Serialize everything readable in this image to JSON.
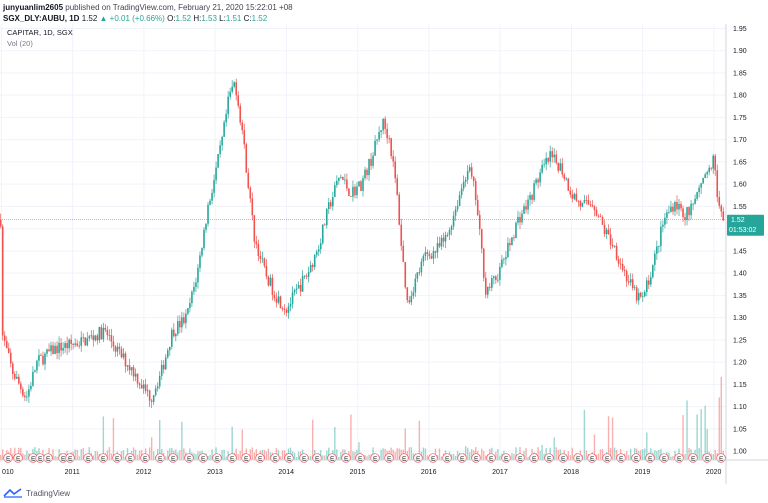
{
  "header": {
    "user": "junyuanlim2605",
    "published": "published on TradingView.com, February 21, 2020 15:22:01 +08",
    "symbol": "SGX_DLY:AUBU, 1D",
    "last": "1.52",
    "change": "+0.01 (+0.66%)",
    "o_label": "O:",
    "o": "1.52",
    "h_label": "H:",
    "h": "1.53",
    "l_label": "L:",
    "l": "1.51",
    "c_label": "C:",
    "c": "1.52"
  },
  "legend": {
    "title": "CAPITAR, 1D, SGX",
    "volume": "Vol (20)"
  },
  "price_badge": {
    "price": "1.52",
    "countdown": "01:53:02"
  },
  "footer": {
    "brand": "TradingView"
  },
  "colors": {
    "up": "#26a69a",
    "down": "#ef5350",
    "grid": "#f0f3fa",
    "axis_text": "#131722",
    "badge": "#26a69a"
  },
  "event_marker_label": "E",
  "chart_data": {
    "type": "candlestick",
    "interval": "1D",
    "x_ticks": [
      "010",
      "2011",
      "2012",
      "2013",
      "2014",
      "2015",
      "2016",
      "2017",
      "2018",
      "2019",
      "2020"
    ],
    "y_ticks": [
      "1.95",
      "1.90",
      "1.85",
      "1.80",
      "1.75",
      "1.70",
      "1.65",
      "1.60",
      "1.55",
      "1.50",
      "1.45",
      "1.40",
      "1.35",
      "1.30",
      "1.25",
      "1.20",
      "1.15",
      "1.10",
      "1.05",
      "1.00"
    ],
    "ylim": [
      0.98,
      1.96
    ],
    "last_price": 1.52,
    "series": [
      {
        "name": "Price (approx. trend)",
        "points": [
          [
            2010.0,
            1.27
          ],
          [
            2010.15,
            1.18
          ],
          [
            2010.35,
            1.12
          ],
          [
            2010.5,
            1.2
          ],
          [
            2010.75,
            1.23
          ],
          [
            2011.0,
            1.24
          ],
          [
            2011.2,
            1.25
          ],
          [
            2011.45,
            1.27
          ],
          [
            2011.65,
            1.22
          ],
          [
            2011.85,
            1.18
          ],
          [
            2012.0,
            1.14
          ],
          [
            2012.1,
            1.12
          ],
          [
            2012.25,
            1.18
          ],
          [
            2012.4,
            1.27
          ],
          [
            2012.6,
            1.3
          ],
          [
            2012.75,
            1.4
          ],
          [
            2012.9,
            1.55
          ],
          [
            2013.0,
            1.62
          ],
          [
            2013.1,
            1.7
          ],
          [
            2013.2,
            1.8
          ],
          [
            2013.28,
            1.83
          ],
          [
            2013.38,
            1.72
          ],
          [
            2013.45,
            1.62
          ],
          [
            2013.55,
            1.48
          ],
          [
            2013.7,
            1.4
          ],
          [
            2013.85,
            1.35
          ],
          [
            2014.0,
            1.32
          ],
          [
            2014.15,
            1.36
          ],
          [
            2014.3,
            1.4
          ],
          [
            2014.45,
            1.46
          ],
          [
            2014.6,
            1.55
          ],
          [
            2014.75,
            1.62
          ],
          [
            2014.9,
            1.58
          ],
          [
            2015.05,
            1.6
          ],
          [
            2015.2,
            1.66
          ],
          [
            2015.35,
            1.74
          ],
          [
            2015.45,
            1.7
          ],
          [
            2015.55,
            1.58
          ],
          [
            2015.62,
            1.45
          ],
          [
            2015.7,
            1.33
          ],
          [
            2015.8,
            1.38
          ],
          [
            2015.95,
            1.44
          ],
          [
            2016.1,
            1.45
          ],
          [
            2016.25,
            1.48
          ],
          [
            2016.4,
            1.56
          ],
          [
            2016.55,
            1.64
          ],
          [
            2016.65,
            1.58
          ],
          [
            2016.8,
            1.36
          ],
          [
            2016.95,
            1.39
          ],
          [
            2017.1,
            1.45
          ],
          [
            2017.25,
            1.52
          ],
          [
            2017.4,
            1.56
          ],
          [
            2017.55,
            1.62
          ],
          [
            2017.7,
            1.66
          ],
          [
            2017.85,
            1.64
          ],
          [
            2018.0,
            1.58
          ],
          [
            2018.15,
            1.55
          ],
          [
            2018.3,
            1.56
          ],
          [
            2018.45,
            1.5
          ],
          [
            2018.6,
            1.46
          ],
          [
            2018.75,
            1.4
          ],
          [
            2018.9,
            1.35
          ],
          [
            2019.0,
            1.34
          ],
          [
            2019.15,
            1.42
          ],
          [
            2019.3,
            1.52
          ],
          [
            2019.45,
            1.56
          ],
          [
            2019.6,
            1.53
          ],
          [
            2019.75,
            1.57
          ],
          [
            2019.9,
            1.62
          ],
          [
            2020.0,
            1.66
          ],
          [
            2020.05,
            1.58
          ],
          [
            2020.13,
            1.52
          ]
        ]
      }
    ]
  }
}
